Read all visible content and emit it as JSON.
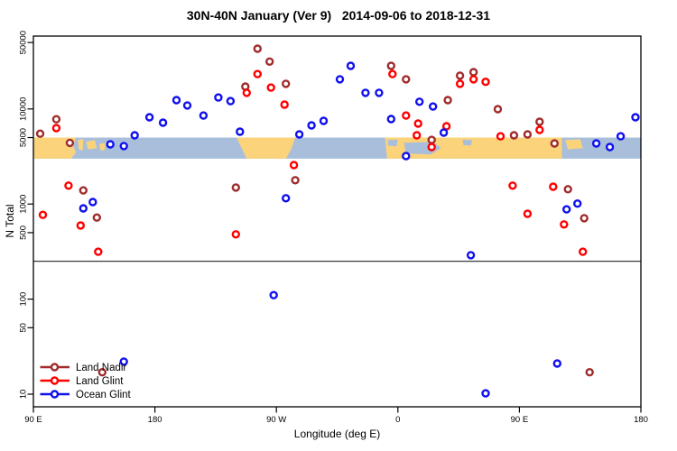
{
  "chart_data": {
    "type": "scatter",
    "title": "30N-40N January (Ver 9)   2014-09-06 to 2018-12-31",
    "xlabel": "Longitude (deg E)",
    "ylabel": "N Total",
    "x_axis": {
      "scale": "linear",
      "range": [
        90,
        540
      ],
      "ticks": [
        {
          "label": "90 E",
          "lon": 90
        },
        {
          "label": "180",
          "lon": 180
        },
        {
          "label": "90 W",
          "lon": 270
        },
        {
          "label": "0",
          "lon": 360
        },
        {
          "label": "90 E",
          "lon": 450
        },
        {
          "label": "180",
          "lon": 540
        }
      ]
    },
    "y_axis": {
      "scale": "log",
      "range": [
        10,
        50000
      ],
      "ticks": [
        {
          "label": "50000",
          "n": 50000
        },
        {
          "label": "10000",
          "n": 10000
        },
        {
          "label": "5000",
          "n": 5000
        },
        {
          "label": "1000",
          "n": 1000
        },
        {
          "label": "500",
          "n": 500
        },
        {
          "label": "100",
          "n": 100
        },
        {
          "label": "50",
          "n": 50
        },
        {
          "label": "10",
          "n": 10
        }
      ]
    },
    "reference_line_n": 250,
    "map_band": {
      "n_top": 5000,
      "n_bottom": 3000,
      "land_color": "#FAD37B",
      "ocean_color": "#A9BEDB",
      "land": [
        {
          "name": "asia-east",
          "pts": [
            [
              90,
              0
            ],
            [
              121.5,
              0
            ],
            [
              119.5,
              0.4
            ],
            [
              121.5,
              0.7
            ],
            [
              118,
              1
            ],
            [
              90,
              1
            ]
          ]
        },
        {
          "name": "korea",
          "pts": [
            [
              123,
              0.1
            ],
            [
              127,
              0.08
            ],
            [
              126.5,
              0.62
            ],
            [
              123.5,
              0.55
            ]
          ]
        },
        {
          "name": "japan-west",
          "pts": [
            [
              129,
              0.2
            ],
            [
              135.5,
              0.12
            ],
            [
              137,
              0.5
            ],
            [
              130.5,
              0.56
            ]
          ]
        },
        {
          "name": "japan-small",
          "pts": [
            [
              139,
              0.3
            ],
            [
              143.5,
              0.25
            ],
            [
              142.5,
              0.62
            ],
            [
              139.5,
              0.58
            ]
          ]
        },
        {
          "name": "north-america",
          "pts": [
            [
              240.5,
              0
            ],
            [
              284,
              0
            ],
            [
              281,
              0.55
            ],
            [
              277,
              1
            ],
            [
              248,
              1
            ],
            [
              243.5,
              0.4
            ]
          ]
        },
        {
          "name": "africa-eurasia",
          "pts": [
            [
              350.5,
              0
            ],
            [
              481.5,
              0
            ],
            [
              481.5,
              1
            ],
            [
              352,
              1
            ]
          ]
        },
        {
          "name": "japan-east",
          "pts": [
            [
              484,
              0.12
            ],
            [
              495,
              0.08
            ],
            [
              497,
              0.5
            ],
            [
              486,
              0.56
            ]
          ]
        }
      ],
      "water": [
        {
          "name": "west-mediterranean",
          "pts": [
            [
              352.5,
              0.12
            ],
            [
              360,
              0.1
            ],
            [
              359,
              0.42
            ],
            [
              353,
              0.38
            ]
          ]
        },
        {
          "name": "mediterranean",
          "pts": [
            [
              364.5,
              0.25
            ],
            [
              386,
              0.2
            ],
            [
              392,
              0.5
            ],
            [
              384,
              0.8
            ],
            [
              366,
              0.75
            ]
          ]
        },
        {
          "name": "black-caspian-sea",
          "pts": [
            [
              408,
              0.1
            ],
            [
              415,
              0.12
            ],
            [
              414,
              0.38
            ],
            [
              408.5,
              0.35
            ]
          ]
        }
      ]
    },
    "legend": {
      "position": "bottom-left",
      "entries": [
        {
          "label": "Land Nadir",
          "color": "#A02C2C"
        },
        {
          "label": "Land Glint",
          "color": "#FF0000"
        },
        {
          "label": "Ocean Glint",
          "color": "#1010EE"
        }
      ]
    },
    "series": [
      {
        "name": "Land Nadir",
        "color": "#A02C2C",
        "points": [
          [
            107,
            7800
          ],
          [
            95,
            5500
          ],
          [
            117,
            4400
          ],
          [
            256,
            43000
          ],
          [
            265,
            31500
          ],
          [
            277,
            18400
          ],
          [
            247,
            17200
          ],
          [
            284,
            1780
          ],
          [
            355,
            28400
          ],
          [
            366,
            20500
          ],
          [
            406,
            22400
          ],
          [
            416,
            24400
          ],
          [
            397,
            12400
          ],
          [
            434,
            9950
          ],
          [
            446,
            5280
          ],
          [
            456,
            5400
          ],
          [
            465,
            7330
          ],
          [
            476,
            4340
          ],
          [
            385,
            4730
          ],
          [
            127,
            1390
          ],
          [
            137,
            720
          ],
          [
            240,
            1490
          ],
          [
            486,
            1430
          ],
          [
            498,
            710
          ],
          [
            502,
            17
          ],
          [
            141,
            17
          ]
        ]
      },
      {
        "name": "Land Glint",
        "color": "#FF0000",
        "points": [
          [
            107,
            6290
          ],
          [
            256,
            23300
          ],
          [
            266,
            16800
          ],
          [
            248,
            14800
          ],
          [
            276,
            11100
          ],
          [
            283,
            2570
          ],
          [
            356,
            23300
          ],
          [
            406,
            18400
          ],
          [
            416,
            20500
          ],
          [
            425,
            19300
          ],
          [
            366,
            8530
          ],
          [
            375,
            7020
          ],
          [
            374,
            5280
          ],
          [
            385,
            3980
          ],
          [
            396,
            6580
          ],
          [
            436,
            5160
          ],
          [
            465,
            6020
          ],
          [
            116,
            1560
          ],
          [
            97,
            770
          ],
          [
            125,
            595
          ],
          [
            138,
            315
          ],
          [
            240,
            480
          ],
          [
            445,
            1560
          ],
          [
            475,
            1520
          ],
          [
            456,
            790
          ],
          [
            483,
            610
          ],
          [
            497,
            315
          ]
        ]
      },
      {
        "name": "Ocean Glint",
        "color": "#1010EE",
        "points": [
          [
            165,
            5280
          ],
          [
            147,
            4250
          ],
          [
            157,
            4070
          ],
          [
            176,
            8180
          ],
          [
            186,
            7180
          ],
          [
            196,
            12400
          ],
          [
            204,
            10900
          ],
          [
            227,
            13200
          ],
          [
            236,
            12100
          ],
          [
            216,
            8530
          ],
          [
            243,
            5770
          ],
          [
            287,
            5400
          ],
          [
            296,
            6720
          ],
          [
            305,
            7500
          ],
          [
            317,
            20500
          ],
          [
            325,
            28400
          ],
          [
            336,
            14800
          ],
          [
            346,
            14800
          ],
          [
            376,
            11900
          ],
          [
            386,
            10600
          ],
          [
            355,
            7830
          ],
          [
            394,
            5640
          ],
          [
            366,
            3200
          ],
          [
            507,
            4340
          ],
          [
            517,
            3980
          ],
          [
            525,
            5160
          ],
          [
            536,
            8180
          ],
          [
            134,
            1050
          ],
          [
            127,
            900
          ],
          [
            277,
            1150
          ],
          [
            493,
            1010
          ],
          [
            485,
            880
          ],
          [
            414,
            290
          ],
          [
            268,
            110
          ],
          [
            478,
            21
          ],
          [
            425,
            10.2
          ],
          [
            157,
            22
          ]
        ]
      }
    ]
  }
}
